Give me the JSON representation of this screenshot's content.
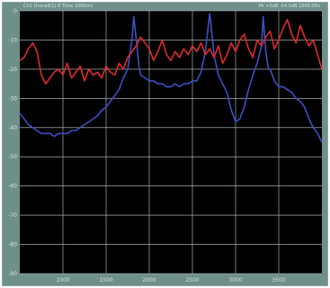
{
  "header": {
    "left_text": "Ch1 Overall(1) R Time 1000ms",
    "right_text": "Pk +5dB -54.5dB 1000.0Hz"
  },
  "chart_data": {
    "type": "line",
    "title": "",
    "xlabel": "",
    "ylabel": "",
    "xlim": [
      0,
      350
    ],
    "ylim": [
      -90,
      0
    ],
    "y_ticks": [
      0,
      -10,
      -20,
      -30,
      -40,
      -50,
      -60,
      -70,
      -80,
      -90
    ],
    "x_ticks": [
      50,
      100,
      150,
      200,
      250,
      300
    ],
    "x_tick_labels": [
      "1000",
      "1500",
      "2000",
      "2500",
      "3000",
      "3500"
    ],
    "grid": true,
    "background": "#000000",
    "series": [
      {
        "color": "#3d4fc4",
        "x": [
          0,
          5,
          10,
          15,
          20,
          25,
          30,
          35,
          40,
          45,
          50,
          55,
          60,
          65,
          70,
          75,
          80,
          85,
          90,
          95,
          100,
          105,
          110,
          115,
          120,
          125,
          130,
          132,
          135,
          138,
          140,
          145,
          150,
          155,
          160,
          165,
          170,
          175,
          180,
          185,
          190,
          195,
          200,
          205,
          210,
          215,
          218,
          220,
          222,
          225,
          230,
          235,
          240,
          245,
          250,
          255,
          260,
          265,
          270,
          275,
          280,
          282,
          285,
          288,
          290,
          295,
          300,
          305,
          310,
          315,
          320,
          325,
          330,
          335,
          340,
          345,
          350
        ],
        "y": [
          -35,
          -37,
          -39,
          -40,
          -41,
          -42,
          -42,
          -42,
          -43,
          -42,
          -42,
          -42,
          -41,
          -41,
          -40,
          -39,
          -38,
          -37,
          -36,
          -34,
          -33,
          -31,
          -29,
          -27,
          -23,
          -20,
          -10,
          -2,
          -10,
          -19,
          -22,
          -23,
          -24,
          -24,
          -25,
          -25,
          -26,
          -26,
          -25,
          -26,
          -25,
          -25,
          -24,
          -24,
          -21,
          -14,
          -6,
          -1,
          -6,
          -15,
          -22,
          -25,
          -28,
          -34,
          -38,
          -37,
          -33,
          -27,
          -22,
          -18,
          -12,
          -2,
          -14,
          -20,
          -20,
          -24,
          -26,
          -26,
          -27,
          -28,
          -30,
          -31,
          -33,
          -37,
          -40,
          -42,
          -45
        ]
      },
      {
        "color": "#e02a2a",
        "x": [
          0,
          5,
          10,
          15,
          20,
          25,
          30,
          35,
          40,
          45,
          50,
          55,
          60,
          65,
          70,
          75,
          80,
          85,
          90,
          95,
          100,
          105,
          110,
          115,
          120,
          125,
          130,
          135,
          140,
          145,
          150,
          155,
          160,
          165,
          170,
          175,
          180,
          185,
          190,
          195,
          200,
          205,
          210,
          215,
          220,
          225,
          230,
          235,
          240,
          245,
          250,
          255,
          260,
          265,
          270,
          275,
          280,
          285,
          290,
          295,
          300,
          305,
          310,
          315,
          320,
          325,
          330,
          335,
          340,
          345,
          350
        ],
        "y": [
          -17,
          -16,
          -13,
          -11,
          -14,
          -22,
          -25,
          -23,
          -21,
          -20,
          -22,
          -18,
          -23,
          -21,
          -19,
          -24,
          -20,
          -22,
          -21,
          -23,
          -19,
          -21,
          -22,
          -18,
          -20,
          -16,
          -14,
          -12,
          -9,
          -11,
          -13,
          -17,
          -14,
          -10,
          -15,
          -17,
          -14,
          -16,
          -13,
          -15,
          -12,
          -14,
          -11,
          -15,
          -13,
          -16,
          -12,
          -18,
          -15,
          -11,
          -14,
          -10,
          -8,
          -13,
          -16,
          -10,
          -12,
          -9,
          -7,
          -13,
          -10,
          -6,
          -3,
          -8,
          -11,
          -5,
          -9,
          -12,
          -10,
          -15,
          -20
        ]
      }
    ]
  }
}
